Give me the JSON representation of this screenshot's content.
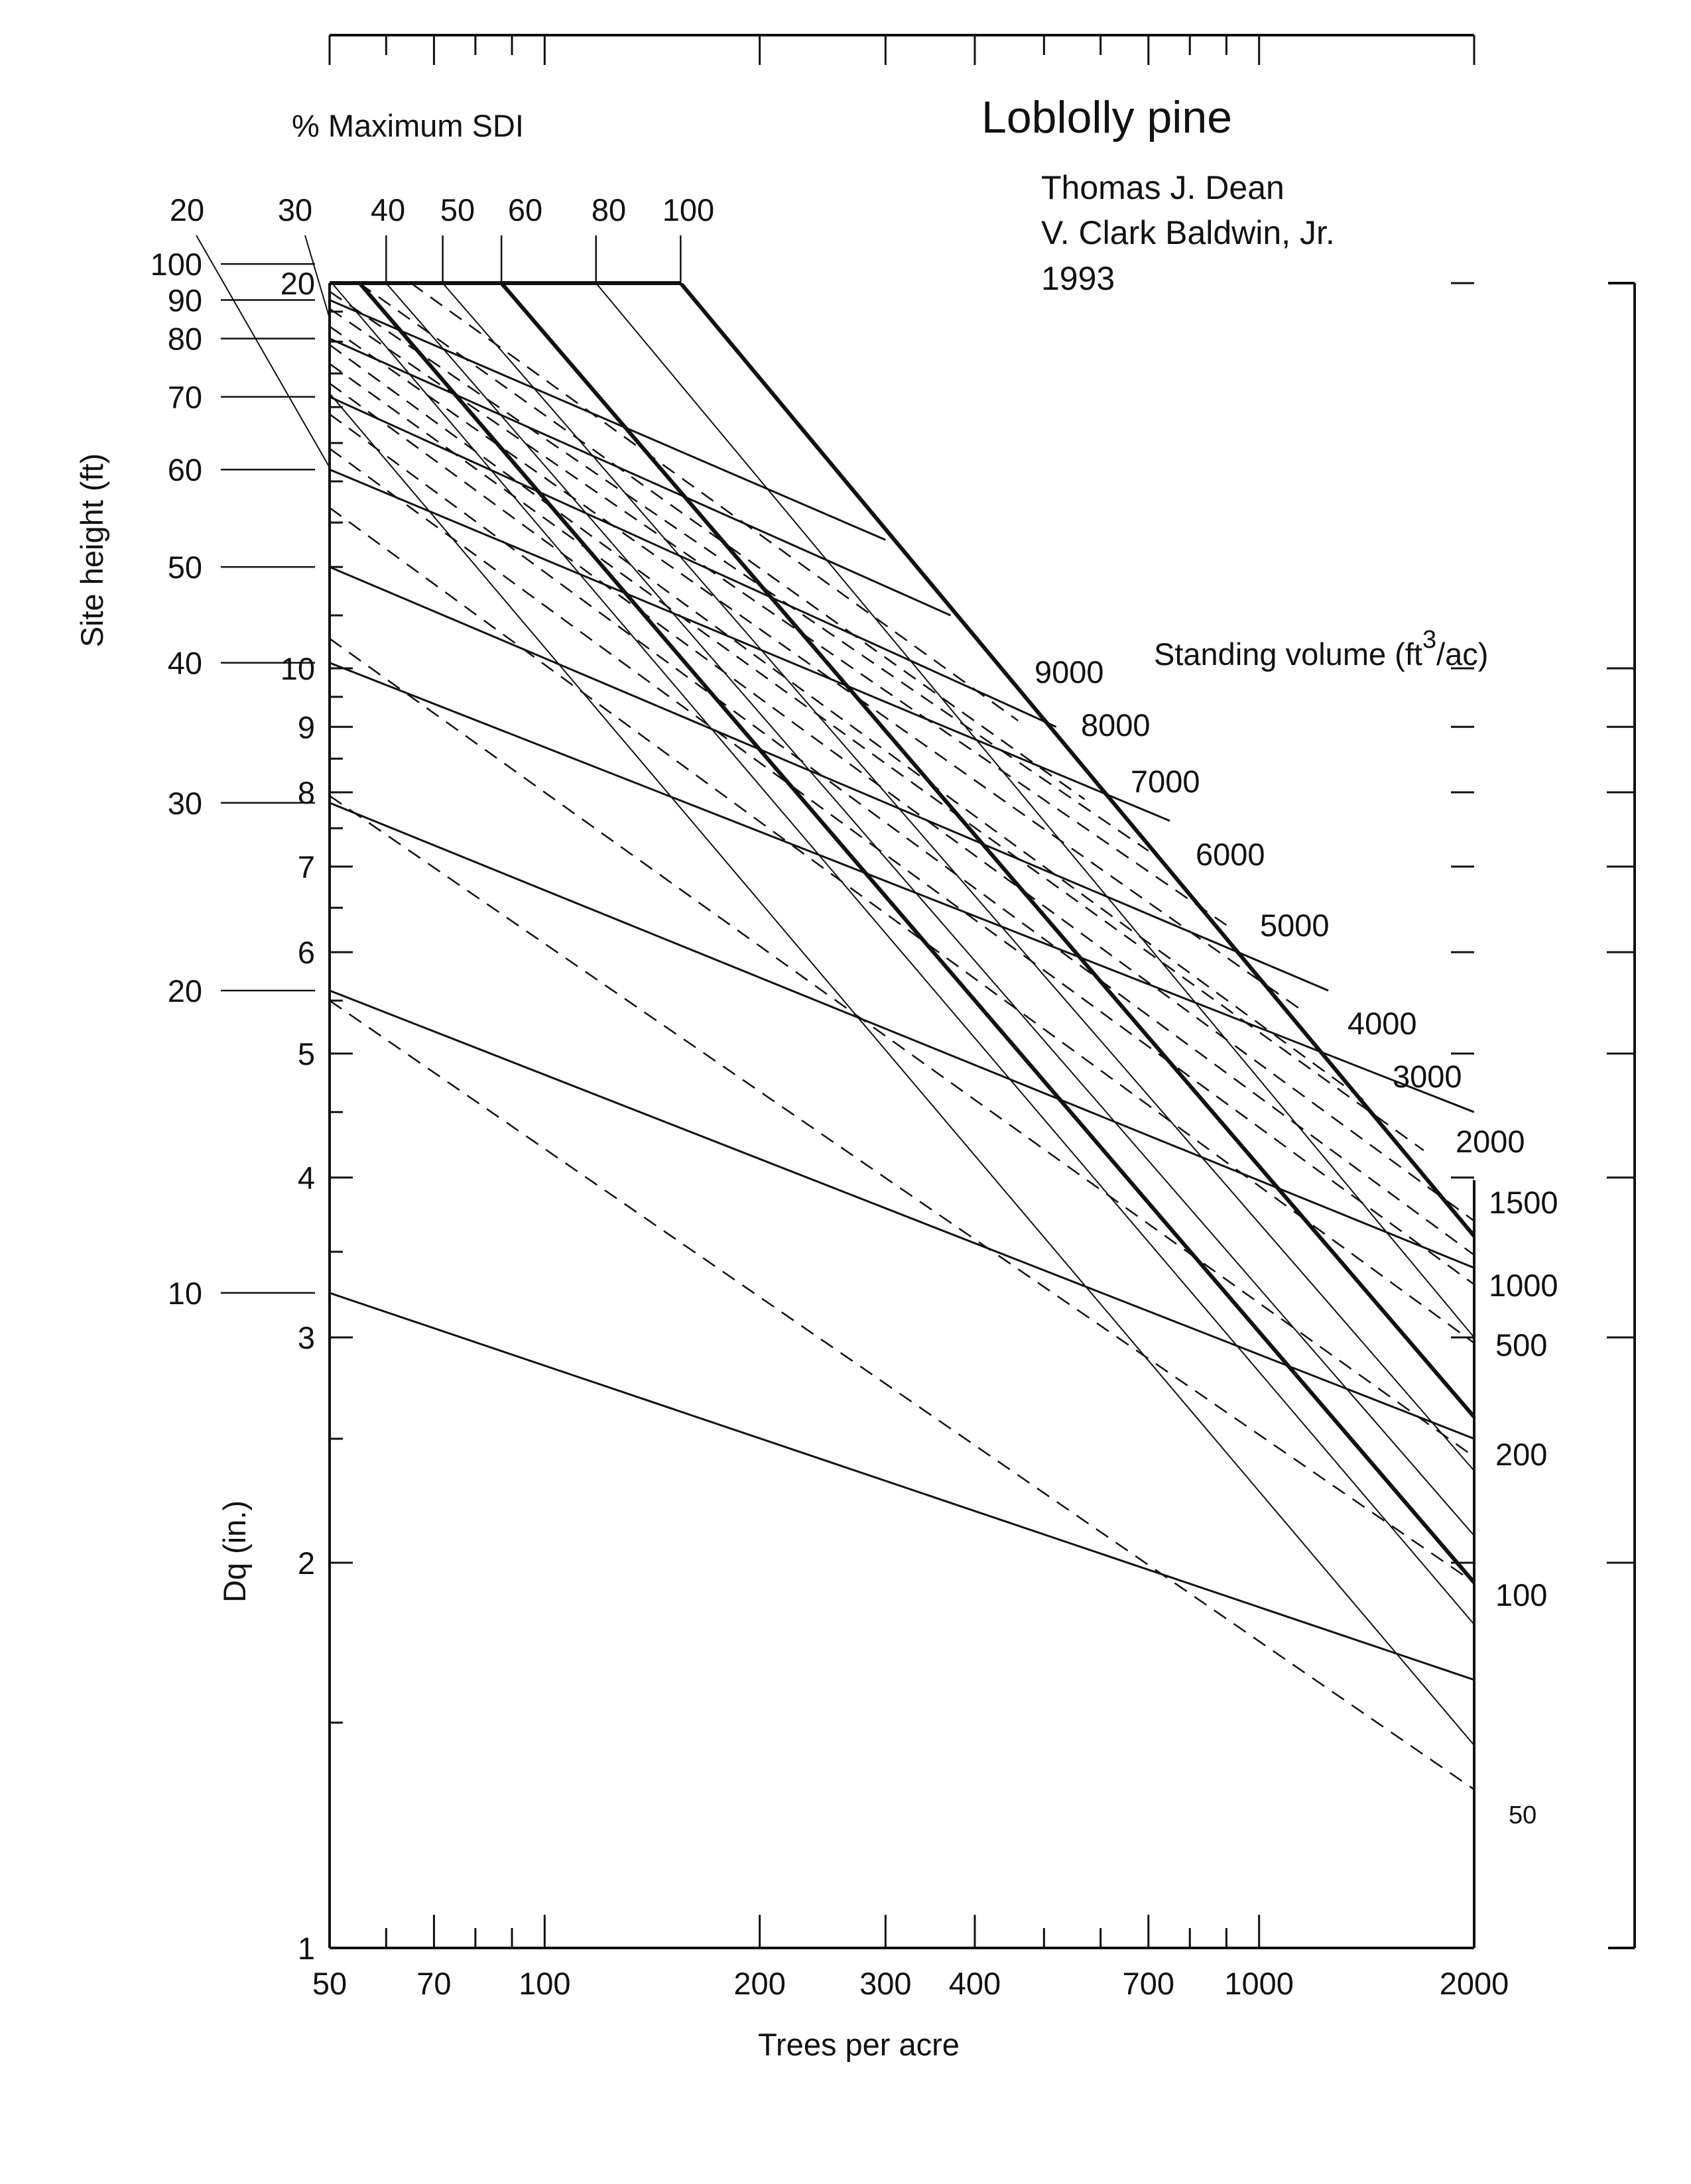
{
  "chart_data": {
    "type": "line",
    "title": "Loblolly pine",
    "authors": [
      "Thomas J. Dean",
      "V. Clark Baldwin, Jr.",
      "1993"
    ],
    "x_axis": {
      "label": "Trees per acre",
      "scale": "log",
      "range": [
        50,
        2000
      ],
      "tick_labels": [
        "50",
        "70",
        "100",
        "200",
        "300",
        "400",
        "700",
        "1000",
        "2000"
      ],
      "tick_values": [
        50,
        70,
        100,
        200,
        300,
        400,
        700,
        1000,
        2000
      ]
    },
    "y_axis": {
      "label": "Dq (in.)",
      "scale": "log",
      "range": [
        1,
        20
      ],
      "tick_labels": [
        "1",
        "2",
        "3",
        "4",
        "5",
        "6",
        "7",
        "8",
        "9",
        "10",
        "20"
      ],
      "tick_values": [
        1,
        2,
        3,
        4,
        5,
        6,
        7,
        8,
        9,
        10,
        20
      ]
    },
    "sdi_scale": {
      "label": "% Maximum SDI",
      "tick_labels": [
        "20",
        "30",
        "40",
        "50",
        "60",
        "80",
        "100"
      ],
      "values": [
        20,
        30,
        40,
        50,
        60,
        80,
        100
      ],
      "emphasized": [
        35,
        60,
        100
      ]
    },
    "site_height_scale": {
      "label": "Site height (ft)",
      "tick_labels": [
        "10",
        "20",
        "30",
        "40",
        "50",
        "60",
        "70",
        "80",
        "90",
        "100"
      ],
      "values": [
        10,
        20,
        30,
        40,
        50,
        60,
        70,
        80,
        90,
        100
      ],
      "height_dq": [
        [
          10,
          3.25
        ],
        [
          20,
          5.6
        ],
        [
          30,
          7.85
        ],
        [
          40,
          10.1
        ],
        [
          50,
          12.0
        ],
        [
          60,
          14.3
        ],
        [
          70,
          16.3
        ],
        [
          80,
          18.1
        ],
        [
          90,
          19.4
        ],
        [
          100,
          20.7
        ]
      ]
    },
    "volume_scale": {
      "label_prefix": "Standing volume (ft",
      "label_sup": "3",
      "label_suffix": "/ac)",
      "tick_labels": [
        "50",
        "100",
        "200",
        "500",
        "1000",
        "1500",
        "2000",
        "3000",
        "4000",
        "5000",
        "6000",
        "7000",
        "8000",
        "9000"
      ],
      "values": [
        50,
        100,
        200,
        500,
        1000,
        1500,
        2000,
        3000,
        4000,
        5000,
        6000,
        7000,
        8000,
        9000
      ]
    },
    "site_height_lines": [
      {
        "height": 10,
        "points": [
          [
            50,
            3.25
          ],
          [
            2000,
            1.62
          ]
        ]
      },
      {
        "height": 20,
        "points": [
          [
            50,
            5.6
          ],
          [
            2000,
            2.5
          ]
        ]
      },
      {
        "height": 30,
        "points": [
          [
            50,
            7.85
          ],
          [
            2000,
            3.4
          ]
        ]
      },
      {
        "height": 40,
        "points": [
          [
            50,
            10.1
          ],
          [
            2000,
            4.5
          ]
        ]
      },
      {
        "height": 50,
        "points": [
          [
            50,
            12.0
          ],
          [
            1250,
            5.6
          ]
        ]
      },
      {
        "height": 60,
        "points": [
          [
            50,
            14.3
          ],
          [
            750,
            7.6
          ]
        ]
      },
      {
        "height": 70,
        "points": [
          [
            50,
            16.3
          ],
          [
            520,
            9.0
          ]
        ]
      },
      {
        "height": 80,
        "points": [
          [
            50,
            18.1
          ],
          [
            370,
            11.0
          ]
        ]
      },
      {
        "height": 90,
        "points": [
          [
            50,
            19.4
          ],
          [
            300,
            12.6
          ]
        ]
      }
    ],
    "volume_lines": [
      {
        "volume": 50,
        "points": [
          [
            50,
            5.5
          ],
          [
            2000,
            1.33
          ]
        ]
      },
      {
        "volume": 100,
        "points": [
          [
            50,
            7.95
          ],
          [
            2000,
            1.93
          ]
        ]
      },
      {
        "volume": 200,
        "points": [
          [
            50,
            10.55
          ],
          [
            2000,
            2.42
          ]
        ]
      },
      {
        "volume": 500,
        "points": [
          [
            50,
            13.35
          ],
          [
            2000,
            2.97
          ]
        ]
      },
      {
        "volume": 1000,
        "points": [
          [
            50,
            14.85
          ],
          [
            2000,
            3.3
          ]
        ]
      },
      {
        "volume": 1500,
        "points": [
          [
            50,
            15.8
          ],
          [
            2000,
            3.48
          ]
        ]
      },
      {
        "volume": 2000,
        "points": [
          [
            50,
            16.7
          ],
          [
            2000,
            3.7
          ]
        ]
      },
      {
        "volume": 3000,
        "points": [
          [
            50,
            17.3
          ],
          [
            1700,
            4.2
          ]
        ]
      },
      {
        "volume": 4000,
        "points": [
          [
            50,
            17.9
          ],
          [
            1400,
            4.6
          ]
        ]
      },
      {
        "volume": 5000,
        "points": [
          [
            50,
            18.5
          ],
          [
            1150,
            5.4
          ]
        ]
      },
      {
        "volume": 6000,
        "points": [
          [
            50,
            19.1
          ],
          [
            900,
            6.3
          ]
        ]
      },
      {
        "volume": 7000,
        "points": [
          [
            50,
            19.7
          ],
          [
            700,
            7.2
          ]
        ]
      },
      {
        "volume": 8000,
        "points": [
          [
            55,
            20
          ],
          [
            570,
            7.9
          ]
        ]
      },
      {
        "volume": 9000,
        "points": [
          [
            65,
            20
          ],
          [
            460,
            9.1
          ]
        ]
      }
    ],
    "sdi_lines": [
      {
        "sdi": 20,
        "points": [
          [
            50,
            16.4
          ],
          [
            2000,
            1.44
          ]
        ]
      },
      {
        "sdi": 30,
        "points": [
          [
            50,
            20.1
          ],
          [
            2000,
            1.79
          ]
        ]
      },
      {
        "sdi": 35,
        "points": [
          [
            50,
            21.3
          ],
          [
            2000,
            1.93
          ]
        ]
      },
      {
        "sdi": 40,
        "points": [
          [
            60,
            20
          ],
          [
            2000,
            2.1
          ]
        ]
      },
      {
        "sdi": 50,
        "points": [
          [
            72,
            20
          ],
          [
            2000,
            2.36
          ]
        ]
      },
      {
        "sdi": 60,
        "points": [
          [
            87,
            20
          ],
          [
            2000,
            2.6
          ]
        ]
      },
      {
        "sdi": 80,
        "points": [
          [
            118,
            20
          ],
          [
            2000,
            3.0
          ]
        ]
      },
      {
        "sdi": 100,
        "points": [
          [
            155,
            20
          ],
          [
            2000,
            3.6
          ]
        ]
      }
    ]
  }
}
